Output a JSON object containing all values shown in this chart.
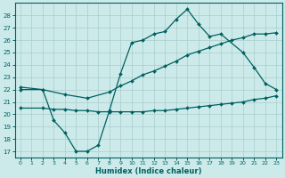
{
  "xlabel": "Humidex (Indice chaleur)",
  "bg_color": "#cceaea",
  "grid_color": "#aacccc",
  "line_color": "#006060",
  "x_ticks": [
    0,
    1,
    2,
    3,
    4,
    5,
    6,
    7,
    8,
    9,
    10,
    11,
    12,
    13,
    14,
    15,
    16,
    17,
    18,
    19,
    20,
    21,
    22,
    23
  ],
  "y_ticks": [
    17,
    18,
    19,
    20,
    21,
    22,
    23,
    24,
    25,
    26,
    27,
    28
  ],
  "ylim": [
    16.5,
    29.0
  ],
  "xlim": [
    -0.5,
    23.5
  ],
  "line1_x": [
    0,
    2,
    3,
    4,
    5,
    6,
    7,
    8,
    9,
    10,
    11,
    12,
    13,
    14,
    15,
    16,
    17,
    18,
    20,
    21,
    22,
    23
  ],
  "line1_y": [
    22.0,
    22.0,
    19.5,
    18.5,
    17.0,
    17.0,
    17.5,
    20.3,
    23.3,
    25.8,
    26.0,
    26.5,
    26.7,
    27.7,
    28.5,
    27.3,
    26.3,
    26.5,
    25.0,
    23.8,
    22.5,
    22.0
  ],
  "line2_x": [
    0,
    2,
    4,
    6,
    8,
    9,
    10,
    11,
    12,
    13,
    14,
    15,
    16,
    17,
    18,
    19,
    20,
    21,
    22,
    23
  ],
  "line2_y": [
    22.2,
    22.0,
    21.6,
    21.3,
    21.8,
    22.3,
    22.7,
    23.2,
    23.5,
    23.9,
    24.3,
    24.8,
    25.1,
    25.4,
    25.7,
    26.0,
    26.2,
    26.5,
    26.5,
    26.6
  ],
  "line3_x": [
    0,
    2,
    3,
    4,
    5,
    6,
    7,
    8,
    9,
    10,
    11,
    12,
    13,
    14,
    15,
    16,
    17,
    18,
    19,
    20,
    21,
    22,
    23
  ],
  "line3_y": [
    20.5,
    20.5,
    20.4,
    20.4,
    20.3,
    20.3,
    20.2,
    20.2,
    20.2,
    20.2,
    20.2,
    20.3,
    20.3,
    20.4,
    20.5,
    20.6,
    20.7,
    20.8,
    20.9,
    21.0,
    21.2,
    21.3,
    21.5
  ]
}
